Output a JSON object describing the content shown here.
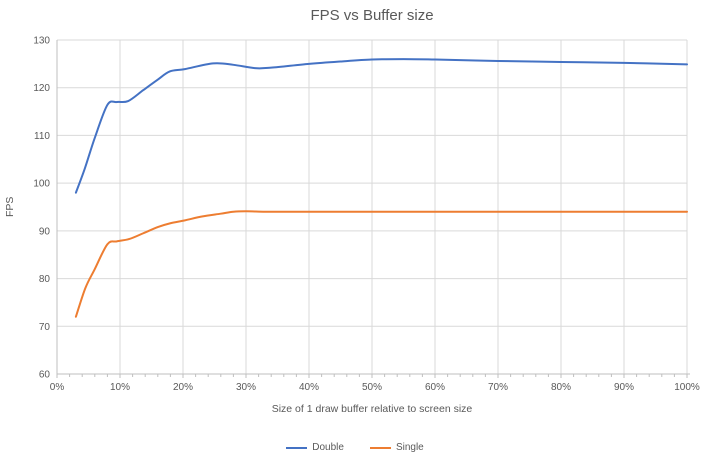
{
  "colors": {
    "background": "#ffffff",
    "text": "#595959",
    "gridline": "#d9d9d9",
    "axis_line": "#bfbfbf",
    "series_double": "#4472c4",
    "series_single": "#ed7d31"
  },
  "chart_data": {
    "type": "line",
    "title": "FPS vs Buffer size",
    "xlabel": "Size of 1 draw buffer relative to screen size",
    "ylabel": "FPS",
    "xlim": [
      0,
      100
    ],
    "ylim": [
      60,
      130
    ],
    "grid": true,
    "smooth": true,
    "legend_position": "bottom",
    "x_tick_values": [
      0,
      10,
      20,
      30,
      40,
      50,
      60,
      70,
      80,
      90,
      100
    ],
    "x_tick_labels": [
      "0%",
      "10%",
      "20%",
      "30%",
      "40%",
      "50%",
      "60%",
      "70%",
      "80%",
      "90%",
      "100%"
    ],
    "x_minor_tick_step": 2,
    "y_tick_values": [
      60,
      70,
      80,
      90,
      100,
      110,
      120,
      130
    ],
    "series": [
      {
        "name": "Double",
        "color": "#4472c4",
        "x": [
          3,
          4.4,
          6,
          8,
          9.5,
          11.3,
          13.7,
          15.9,
          17.9,
          20.3,
          24.8,
          28,
          31.4,
          34,
          40,
          45,
          50,
          55,
          60,
          70,
          80,
          90,
          100
        ],
        "y": [
          98,
          103,
          109.5,
          116.4,
          117,
          117.2,
          119.5,
          121.6,
          123.4,
          123.9,
          125.1,
          124.8,
          124.1,
          124.2,
          125,
          125.5,
          125.9,
          126,
          125.9,
          125.6,
          125.4,
          125.2,
          124.9
        ]
      },
      {
        "name": "Single",
        "color": "#ed7d31",
        "x": [
          3,
          4.5,
          6,
          8,
          9.5,
          11.5,
          13.7,
          16,
          18,
          20.3,
          23,
          26,
          28,
          30,
          33,
          36,
          40,
          45,
          50,
          55,
          60,
          70,
          80,
          90,
          100
        ],
        "y": [
          72,
          78,
          82,
          87.2,
          87.8,
          88.3,
          89.5,
          90.8,
          91.6,
          92.2,
          93,
          93.6,
          94,
          94.1,
          94,
          94,
          94,
          94,
          94,
          94,
          94,
          94,
          94,
          94,
          94
        ]
      }
    ]
  }
}
